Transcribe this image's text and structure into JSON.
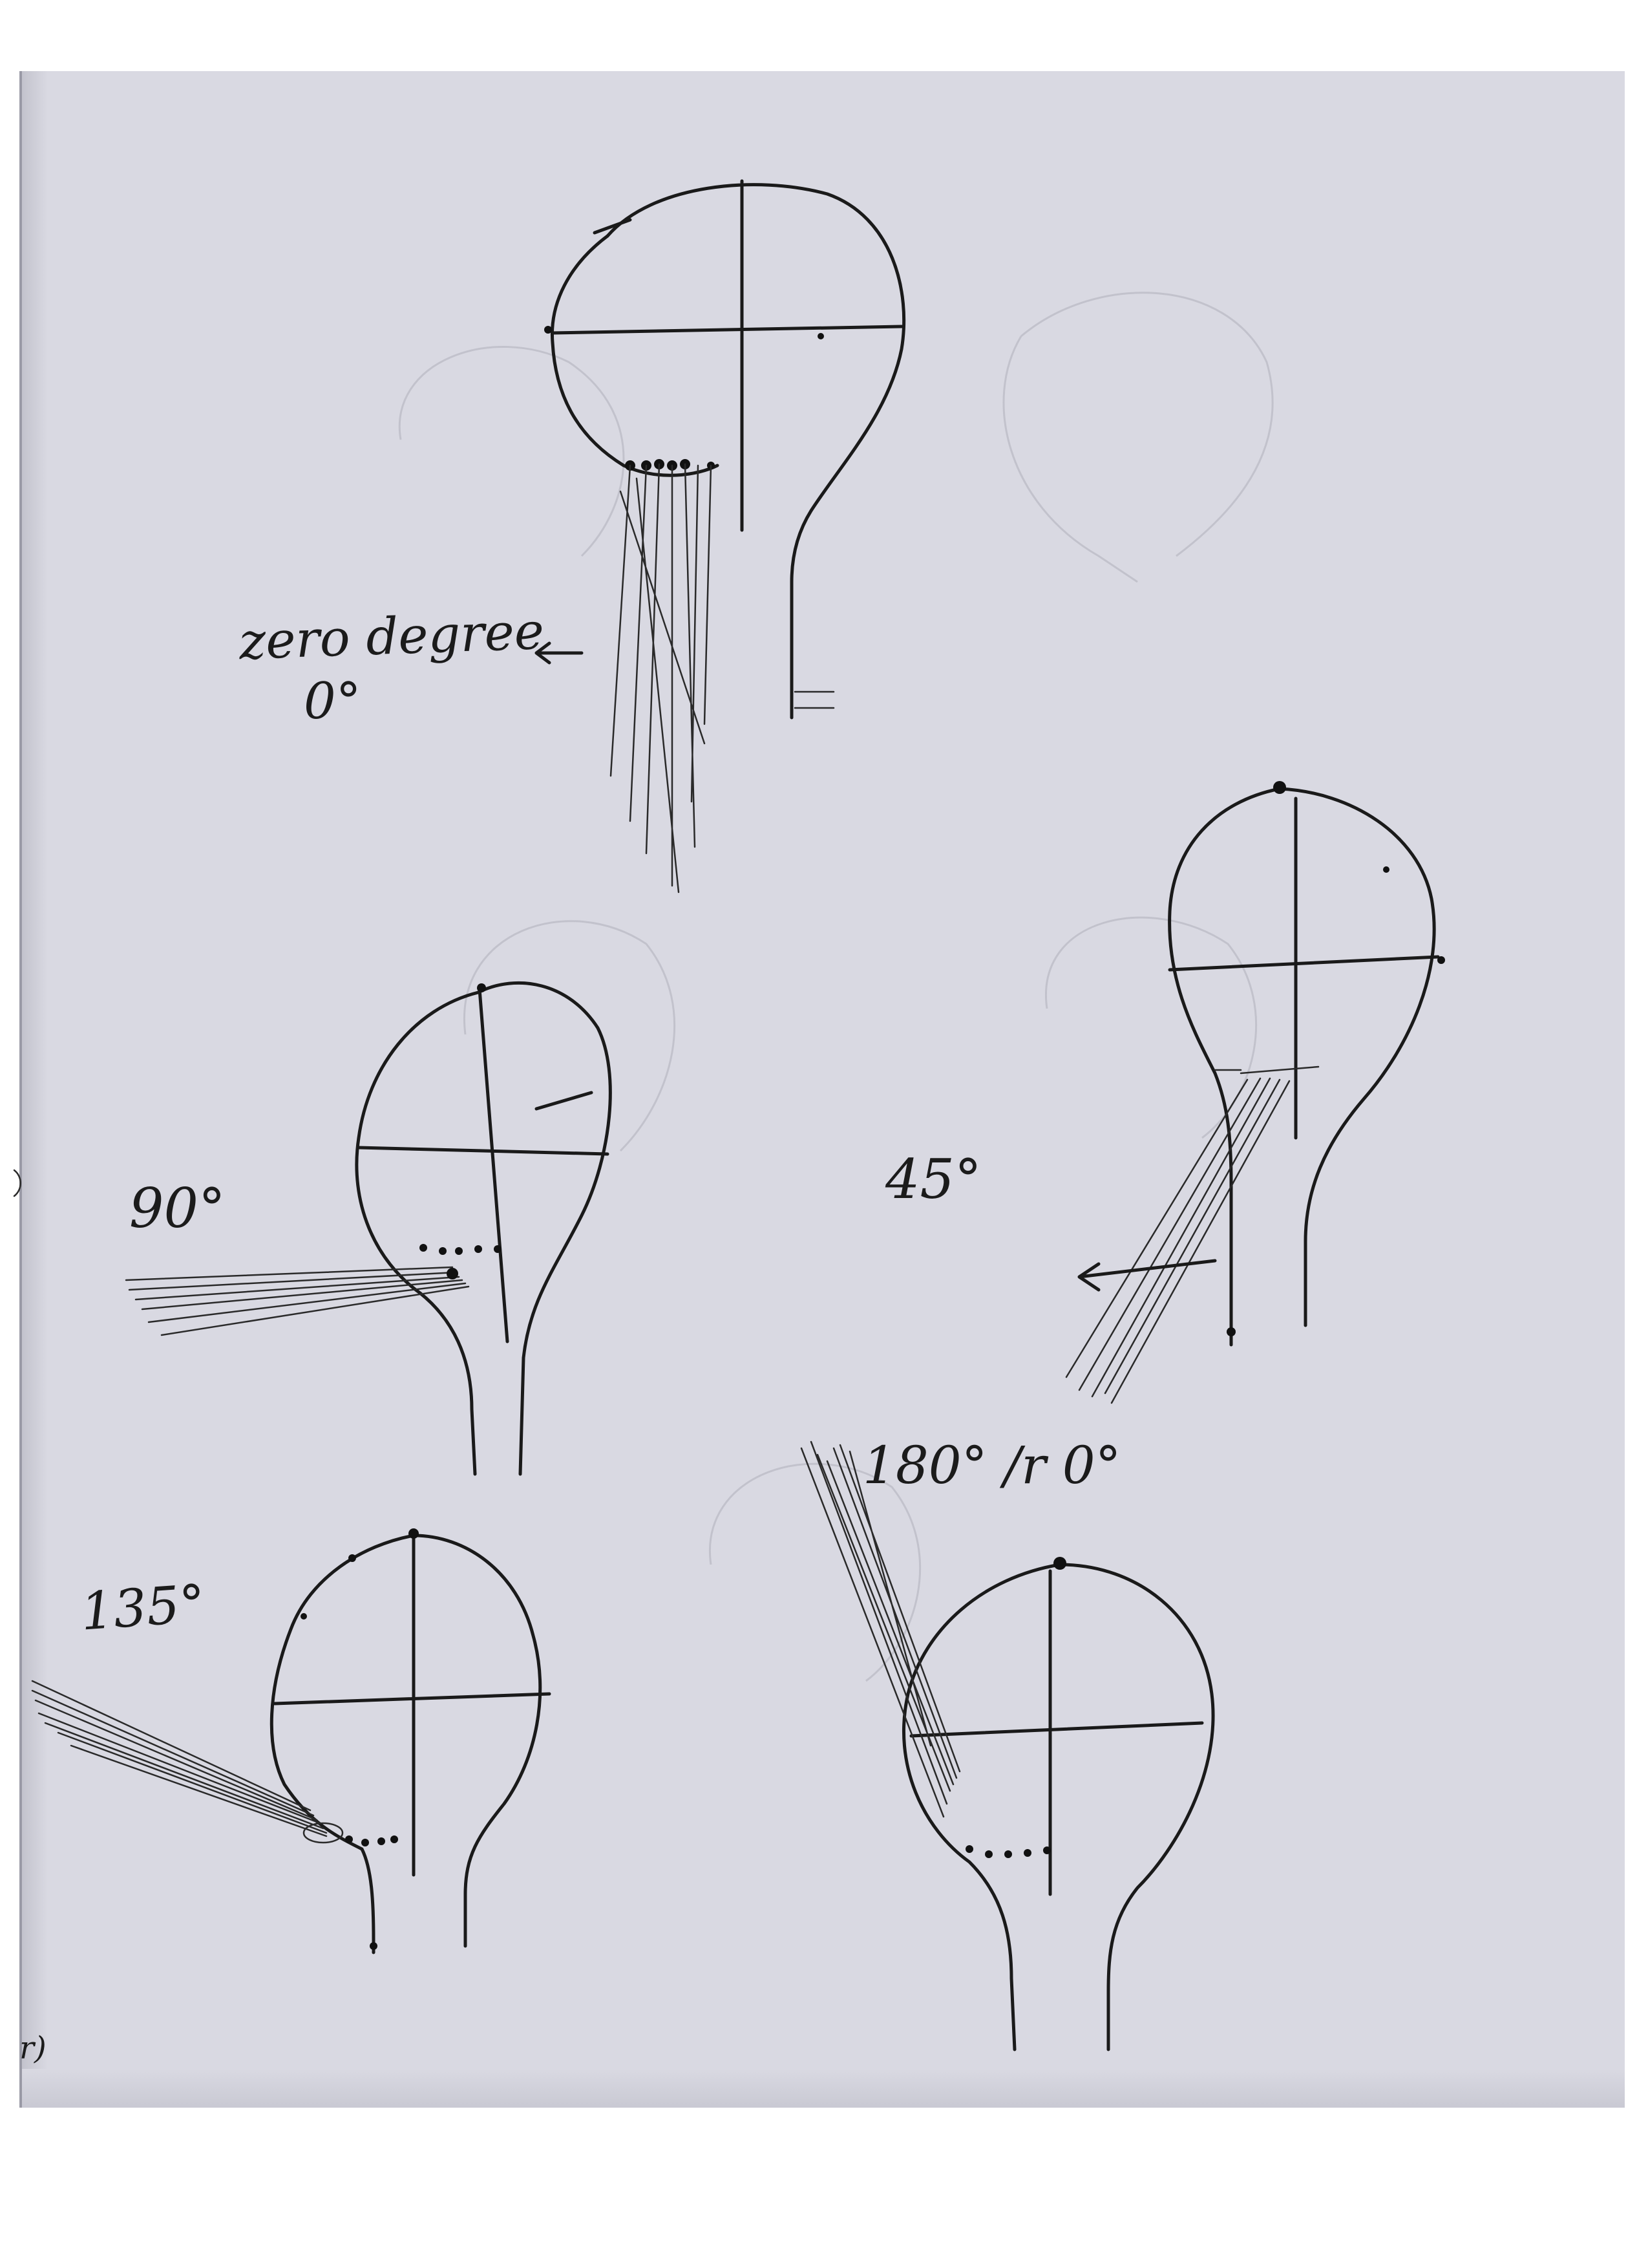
{
  "labels": {
    "zero_title": "zero degree",
    "zero_value": "0°",
    "label_90": "90°",
    "label_45": "45°",
    "label_135": "135°",
    "label_180": "180° /r 0°",
    "margin_mark": "r)"
  },
  "colors": {
    "paper": "#d9d9e2",
    "ink": "#1a1a1a"
  }
}
